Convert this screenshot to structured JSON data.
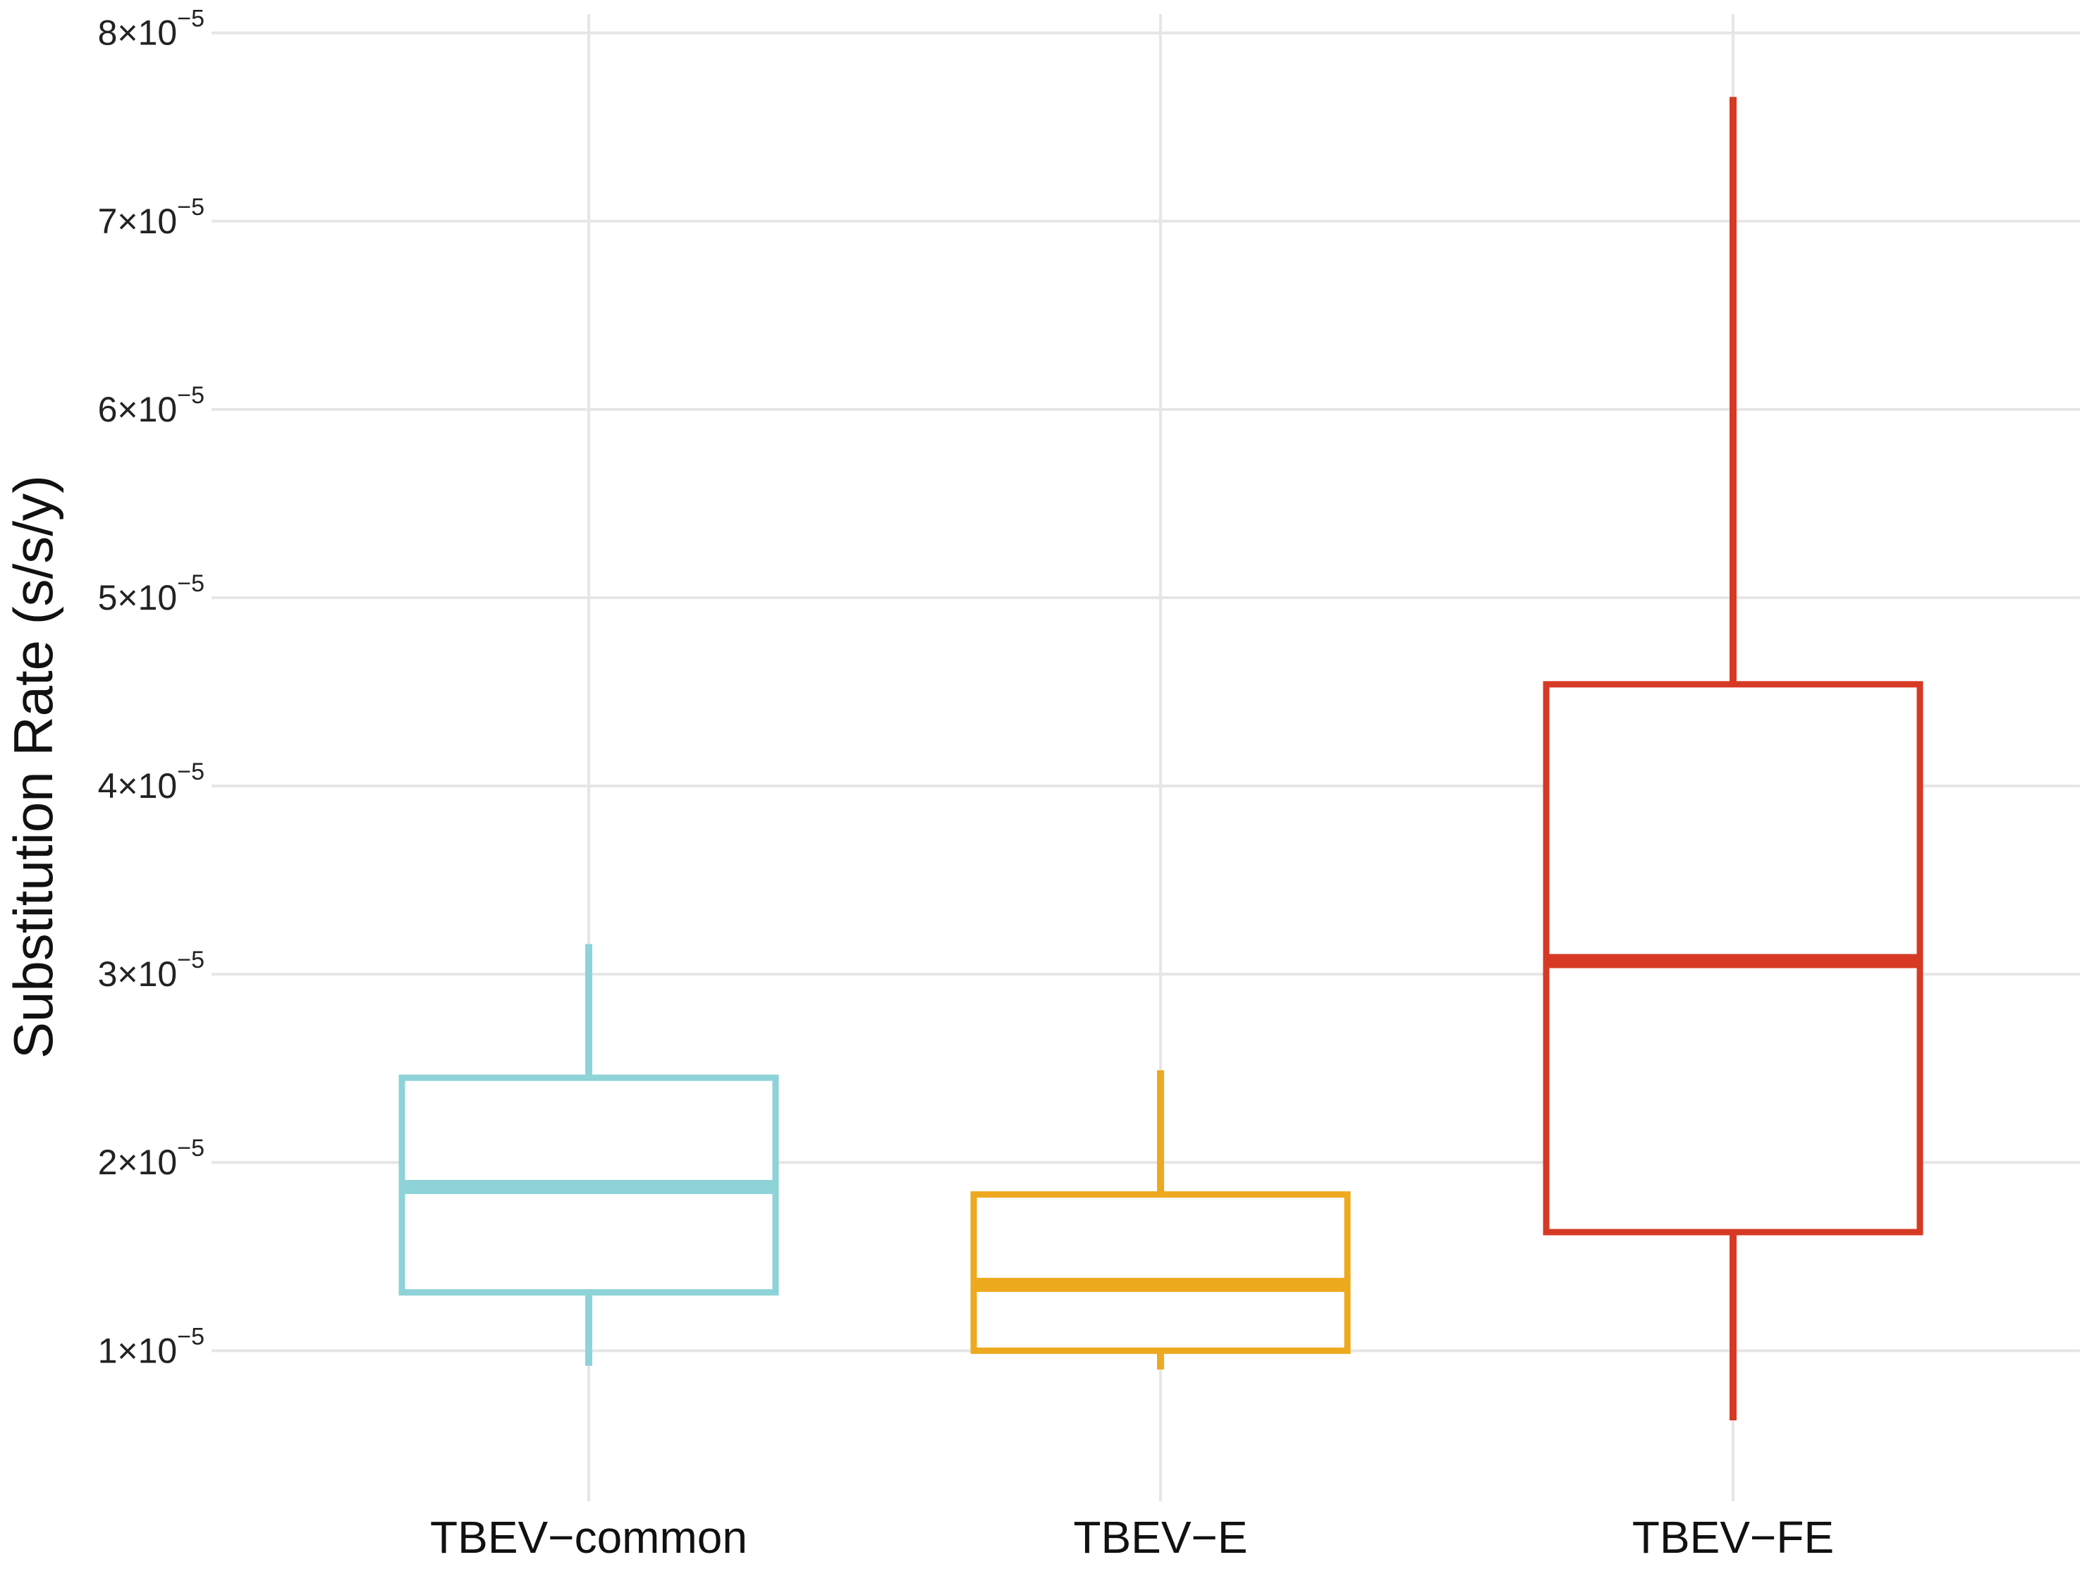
{
  "chart_data": {
    "type": "box",
    "title": "",
    "xlabel": "",
    "ylabel": "Substitution Rate (s/s/y)",
    "ylim": [
      0.2,
      8.1
    ],
    "y_unit_multiplier": "10^-5",
    "y_ticks": [
      {
        "value": 1,
        "mantissa": "1",
        "times": "×",
        "base": "10",
        "exponent": "−5"
      },
      {
        "value": 2,
        "mantissa": "2",
        "times": "×",
        "base": "10",
        "exponent": "−5"
      },
      {
        "value": 3,
        "mantissa": "3",
        "times": "×",
        "base": "10",
        "exponent": "−5"
      },
      {
        "value": 4,
        "mantissa": "4",
        "times": "×",
        "base": "10",
        "exponent": "−5"
      },
      {
        "value": 5,
        "mantissa": "5",
        "times": "×",
        "base": "10",
        "exponent": "−5"
      },
      {
        "value": 6,
        "mantissa": "6",
        "times": "×",
        "base": "10",
        "exponent": "−5"
      },
      {
        "value": 7,
        "mantissa": "7",
        "times": "×",
        "base": "10",
        "exponent": "−5"
      },
      {
        "value": 8,
        "mantissa": "8",
        "times": "×",
        "base": "10",
        "exponent": "−5"
      }
    ],
    "categories": [
      "TBEV−common",
      "TBEV−E",
      "TBEV−FE"
    ],
    "series": [
      {
        "category": "TBEV−common",
        "color": "#8dd3d8",
        "whisker_low": 0.92,
        "q1": 1.31,
        "median": 1.87,
        "q3": 2.45,
        "whisker_high": 3.16
      },
      {
        "category": "TBEV−E",
        "color": "#eea91f",
        "whisker_low": 0.9,
        "q1": 1.0,
        "median": 1.35,
        "q3": 1.83,
        "whisker_high": 2.49
      },
      {
        "category": "TBEV−FE",
        "color": "#d63a24",
        "whisker_low": 0.63,
        "q1": 1.63,
        "median": 3.07,
        "q3": 4.54,
        "whisker_high": 7.66
      }
    ],
    "grid": true,
    "legend": "none"
  }
}
